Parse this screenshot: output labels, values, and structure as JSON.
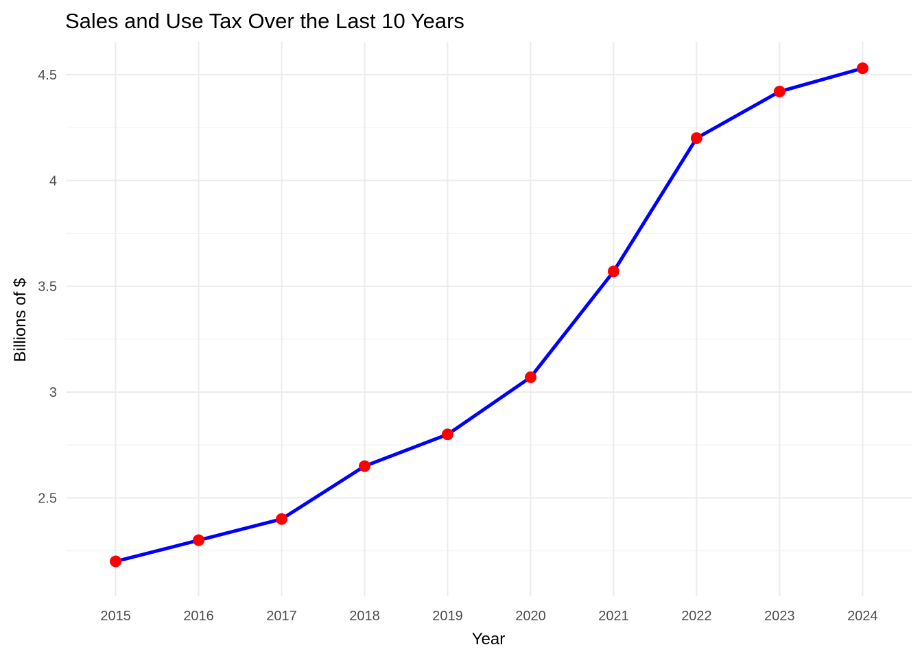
{
  "chart_data": {
    "type": "line",
    "title": "Sales and Use Tax Over the Last 10 Years",
    "xlabel": "Year",
    "ylabel": "Billions of $",
    "x": [
      2015,
      2016,
      2017,
      2018,
      2019,
      2020,
      2021,
      2022,
      2023,
      2024
    ],
    "series": [
      {
        "values": [
          2.2,
          2.3,
          2.4,
          2.65,
          2.8,
          3.07,
          3.57,
          4.2,
          4.42,
          4.53
        ]
      }
    ],
    "xlim": [
      2014.4,
      2024.6
    ],
    "ylim": [
      2.035,
      4.655
    ],
    "y_ticks": [
      2.5,
      3,
      3.5,
      4,
      4.5
    ],
    "y_tick_labels": [
      "2.5",
      "3",
      "3.5",
      "4",
      "4.5"
    ],
    "y_minor_ticks": [
      2.25,
      2.75,
      3.25,
      3.75,
      4.25
    ],
    "grid": true,
    "legend": "none",
    "colors": {
      "line": "#0000ff",
      "points": "#ff0000"
    }
  }
}
